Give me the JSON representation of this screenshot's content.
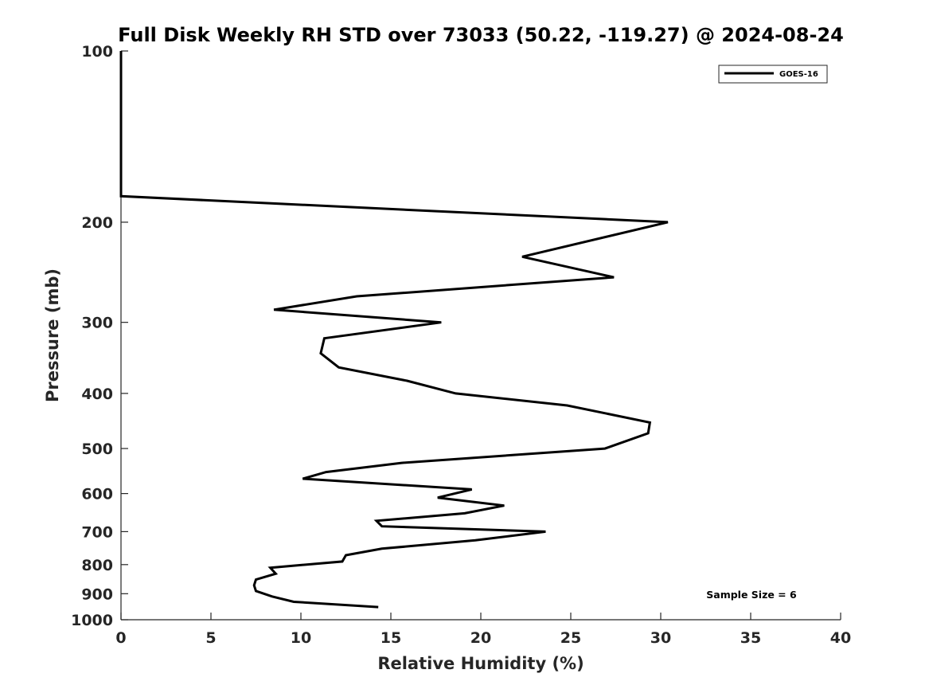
{
  "chart_data": {
    "type": "line",
    "title": "Full Disk Weekly RH STD over 73033 (50.22, -119.27) @ 2024-08-24",
    "xlabel": "Relative Humidity (%)",
    "ylabel": "Pressure (mb)",
    "xlim": [
      0,
      40
    ],
    "ylim": [
      100,
      1000
    ],
    "y_scale": "log",
    "y_reversed": true,
    "x_ticks": [
      "0",
      "5",
      "10",
      "15",
      "20",
      "25",
      "30",
      "35",
      "40"
    ],
    "y_ticks": [
      "100",
      "200",
      "300",
      "400",
      "500",
      "600",
      "700",
      "800",
      "900",
      "1000"
    ],
    "grid": false,
    "legend_position": "top-right",
    "annotation": "Sample Size = 6",
    "series": [
      {
        "name": "GOES-16",
        "color": "#000000",
        "points": [
          [
            0.0,
            100
          ],
          [
            0.0,
            125
          ],
          [
            0.0,
            150
          ],
          [
            0.0,
            180
          ],
          [
            30.4,
            200
          ],
          [
            22.3,
            230
          ],
          [
            27.4,
            250
          ],
          [
            13.1,
            270
          ],
          [
            8.5,
            285
          ],
          [
            17.8,
            300
          ],
          [
            11.3,
            320
          ],
          [
            11.1,
            340
          ],
          [
            12.1,
            360
          ],
          [
            15.9,
            380
          ],
          [
            18.6,
            400
          ],
          [
            24.8,
            420
          ],
          [
            29.4,
            450
          ],
          [
            29.3,
            470
          ],
          [
            26.9,
            500
          ],
          [
            15.6,
            530
          ],
          [
            11.4,
            550
          ],
          [
            10.1,
            565
          ],
          [
            19.5,
            590
          ],
          [
            17.6,
            610
          ],
          [
            21.3,
            630
          ],
          [
            19.1,
            650
          ],
          [
            14.2,
            670
          ],
          [
            14.5,
            685
          ],
          [
            23.6,
            700
          ],
          [
            19.7,
            725
          ],
          [
            14.5,
            750
          ],
          [
            12.5,
            770
          ],
          [
            12.3,
            790
          ],
          [
            8.3,
            810
          ],
          [
            8.6,
            830
          ],
          [
            7.5,
            850
          ],
          [
            7.4,
            870
          ],
          [
            7.5,
            890
          ],
          [
            8.4,
            910
          ],
          [
            9.6,
            930
          ],
          [
            14.3,
            950
          ]
        ]
      }
    ]
  }
}
